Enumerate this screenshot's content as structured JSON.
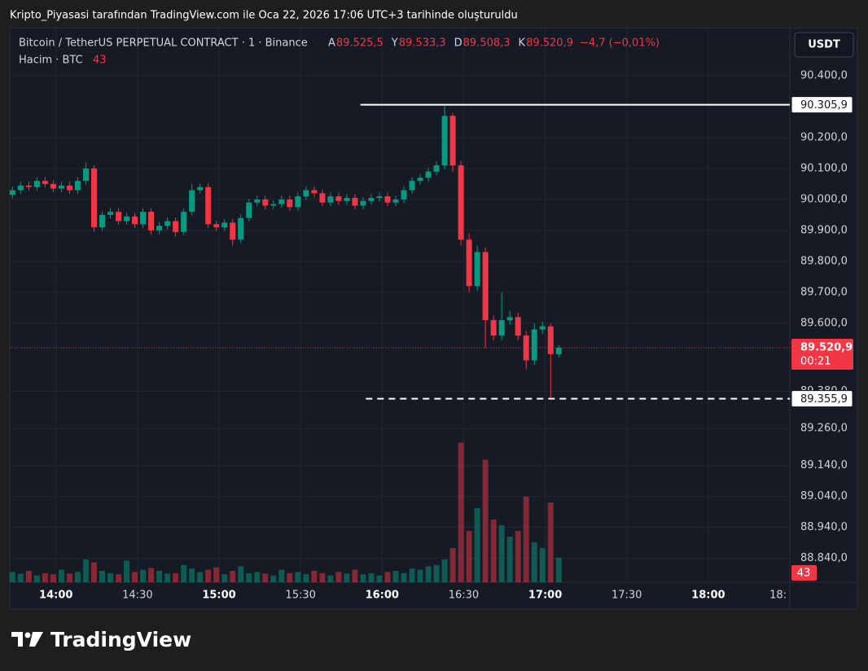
{
  "caption": "Kripto_Piyasasi tarafından TradingView.com ile Oca 22, 2026 17:06 UTC+3 tarihinde oluşturuldu",
  "chart_data": {
    "type": "candlestick",
    "title": "Bitcoin / TetherUS PERPETUAL CONTRACT · 1 · Binance",
    "ohlc_legend": [
      {
        "key": "A",
        "value": "89.525,5"
      },
      {
        "key": "Y",
        "value": "89.533,3"
      },
      {
        "key": "D",
        "value": "89.508,3"
      },
      {
        "key": "K",
        "value": "89.520,9"
      }
    ],
    "change": "−4,7 (−0,01%)",
    "volume_title": "Hacim · BTC",
    "currency": "USDT",
    "countdown": "00:21",
    "last_label": "89.520,9",
    "up_color": "#089981",
    "down_color": "#f23645",
    "x": [
      824,
      827,
      830,
      833,
      836,
      839,
      842,
      845,
      848,
      851,
      854,
      857,
      860,
      863,
      866,
      869,
      872,
      875,
      878,
      881,
      884,
      887,
      890,
      893,
      896,
      899,
      902,
      905,
      908,
      911,
      914,
      917,
      920,
      923,
      926,
      929,
      932,
      935,
      938,
      941,
      944,
      947,
      950,
      953,
      956,
      959,
      962,
      965,
      968,
      971,
      974,
      977,
      980,
      983,
      986,
      989,
      992,
      995,
      998,
      1001,
      1004,
      1007,
      1010,
      1013,
      1016,
      1019,
      1022,
      1025
    ],
    "open": [
      90015,
      90030,
      90045,
      90040,
      90060,
      90050,
      90035,
      90045,
      90030,
      90060,
      90100,
      89910,
      89950,
      89960,
      89930,
      89945,
      89920,
      89960,
      89900,
      89915,
      89930,
      89895,
      89960,
      90030,
      90040,
      89920,
      89910,
      89925,
      89870,
      89940,
      89990,
      90000,
      89980,
      89985,
      90000,
      89975,
      90010,
      90030,
      90020,
      89990,
      90010,
      89995,
      90005,
      89980,
      89995,
      90005,
      90010,
      89990,
      90000,
      90030,
      90060,
      90070,
      90090,
      90110,
      90270,
      90110,
      89870,
      89720,
      89830,
      89610,
      89560,
      89610,
      89620,
      89560,
      89480,
      89580,
      89590,
      89500
    ],
    "high": [
      90042,
      90057,
      90057,
      90072,
      90072,
      90062,
      90057,
      90057,
      90072,
      90120,
      90110,
      89962,
      89972,
      89972,
      89957,
      89957,
      89972,
      89972,
      89927,
      89942,
      89942,
      89972,
      90050,
      90052,
      90052,
      89932,
      89937,
      89937,
      89952,
      90002,
      90012,
      90012,
      89997,
      90012,
      90012,
      90022,
      90042,
      90042,
      90032,
      90022,
      90022,
      90017,
      90017,
      90007,
      90017,
      90022,
      90022,
      90012,
      90042,
      90072,
      90082,
      90102,
      90122,
      90305.9,
      90280,
      90125,
      89890,
      89850,
      89845,
      89625,
      89700,
      89640,
      89635,
      89575,
      89600,
      89605,
      89600,
      89530
    ],
    "low": [
      90003,
      90018,
      90028,
      90028,
      90038,
      90023,
      90023,
      90018,
      90018,
      90048,
      89895,
      89898,
      89938,
      89918,
      89918,
      89908,
      89908,
      89885,
      89888,
      89903,
      89880,
      89883,
      89948,
      90018,
      89908,
      89898,
      89898,
      89850,
      89858,
      89928,
      89978,
      89968,
      89968,
      89973,
      89963,
      89963,
      89998,
      90008,
      89978,
      89978,
      89983,
      89983,
      89968,
      89968,
      89983,
      89993,
      89978,
      89978,
      89988,
      90018,
      90048,
      90058,
      90078,
      90098,
      90090,
      89850,
      89700,
      89705,
      89520,
      89545,
      89545,
      89595,
      89545,
      89450,
      89465,
      89565,
      89355.9,
      89490
    ],
    "close": [
      90030,
      90045,
      90040,
      90060,
      90050,
      90035,
      90045,
      90030,
      90060,
      90100,
      89910,
      89950,
      89960,
      89930,
      89945,
      89920,
      89960,
      89900,
      89915,
      89930,
      89895,
      89960,
      90030,
      90040,
      89920,
      89910,
      89925,
      89870,
      89940,
      89990,
      90000,
      89980,
      89985,
      90000,
      89975,
      90010,
      90030,
      90020,
      89990,
      90010,
      89995,
      90005,
      89980,
      89995,
      90005,
      90010,
      89990,
      90000,
      90030,
      90060,
      90070,
      90090,
      90110,
      90270,
      90110,
      89870,
      89720,
      89830,
      89610,
      89560,
      89610,
      89620,
      89560,
      89480,
      89580,
      89590,
      89500,
      89520.9
    ],
    "volume": [
      18,
      15,
      20,
      12,
      16,
      14,
      22,
      15,
      18,
      40,
      35,
      20,
      16,
      14,
      38,
      18,
      22,
      25,
      20,
      15,
      16,
      30,
      24,
      18,
      22,
      26,
      14,
      20,
      28,
      16,
      18,
      15,
      12,
      22,
      16,
      18,
      14,
      20,
      16,
      12,
      18,
      15,
      22,
      14,
      16,
      12,
      18,
      20,
      16,
      24,
      22,
      28,
      30,
      40,
      60,
      245,
      90,
      130,
      215,
      110,
      100,
      80,
      90,
      150,
      70,
      60,
      140,
      43
    ],
    "xlim": [
      823,
      1110
    ],
    "ylim": [
      88763,
      90555
    ],
    "volume_lim": [
      0,
      300
    ],
    "xticks": [
      {
        "value": 840,
        "label": "14:00"
      },
      {
        "value": 870,
        "label": "14:30"
      },
      {
        "value": 900,
        "label": "15:00"
      },
      {
        "value": 930,
        "label": "15:30"
      },
      {
        "value": 960,
        "label": "16:00"
      },
      {
        "value": 990,
        "label": "16:30"
      },
      {
        "value": 1020,
        "label": "17:00"
      },
      {
        "value": 1050,
        "label": "17:30"
      },
      {
        "value": 1080,
        "label": "18:00"
      },
      {
        "value": 1110,
        "label": "18:"
      }
    ],
    "yticks": [
      {
        "value": 90400,
        "label": "90.400,0"
      },
      {
        "value": 90200,
        "label": "90.200,0"
      },
      {
        "value": 90100,
        "label": "90.100,0"
      },
      {
        "value": 90000,
        "label": "90.000,0"
      },
      {
        "value": 89900,
        "label": "89.900,0"
      },
      {
        "value": 89800,
        "label": "89.800,0"
      },
      {
        "value": 89700,
        "label": "89.700,0"
      },
      {
        "value": 89600,
        "label": "89.600,0"
      },
      {
        "value": 89380,
        "label": "89.380,0"
      },
      {
        "value": 89260,
        "label": "89.260,0"
      },
      {
        "value": 89140,
        "label": "89.140,0"
      },
      {
        "value": 89040,
        "label": "89.040,0"
      },
      {
        "value": 88940,
        "label": "88.940,0"
      },
      {
        "value": 88840,
        "label": "88.840,0"
      }
    ],
    "annotations": [
      {
        "value": 90305.9,
        "label": "90.305,9",
        "style": "solid",
        "start": 952
      },
      {
        "value": 89355.9,
        "label": "89.355,9",
        "style": "dashed",
        "start": 954
      }
    ],
    "grid": true
  },
  "footer": "TradingView"
}
